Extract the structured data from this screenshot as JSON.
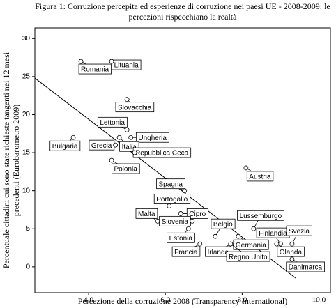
{
  "chart_data": {
    "type": "scatter",
    "title": [
      "Figura 1: Corruzione percepita ed esperienze di corruzione nei paesi UE - 2008-2009: le",
      "percezioni rispecchiano la realtà"
    ],
    "x_label": "Percezione della corruzione 2008 (Transparency International)",
    "y_label": [
      "Percentuale cittadini cui sono state richieste tangenti nei 12 mesi",
      "precedenti (Eurobarometro 2009)"
    ],
    "labels": [
      "Romania",
      "Lituania",
      "Slovacchia",
      "Lettonia",
      "Ungheria",
      "Bulgaria",
      "Grecia",
      "Italia",
      "Repubblica Ceca",
      "Polonia",
      "Austria",
      "Spagna",
      "Portogallo",
      "Malta",
      "Cipro",
      "Slovenia",
      "Estonia",
      "Francia",
      "Belgio",
      "Irlanda",
      "Germania",
      "Regno Unito",
      "Lussemburgo",
      "Finlandia",
      "Olanda",
      "Svezia",
      "Danimarca"
    ],
    "x": [
      3.8,
      4.6,
      5.0,
      5.0,
      5.1,
      3.6,
      4.7,
      4.8,
      5.2,
      4.6,
      8.1,
      6.5,
      6.1,
      5.8,
      6.4,
      6.7,
      6.6,
      6.9,
      7.3,
      7.7,
      7.9,
      7.7,
      8.3,
      9.0,
      8.9,
      9.3,
      9.3
    ],
    "values": [
      27,
      27,
      22,
      18,
      17,
      17,
      16,
      17,
      15,
      14,
      13,
      10,
      8,
      6,
      7,
      6,
      5,
      3,
      4,
      3,
      4,
      3,
      5,
      3,
      3,
      3,
      1
    ],
    "trend_line": {
      "x": [
        2.6,
        9.4
      ],
      "y": [
        24.8,
        -1.5
      ]
    },
    "xlim": [
      2.6,
      10.3
    ],
    "ylim": [
      -3.4,
      31.4
    ],
    "xticks": [
      {
        "value": 4,
        "label": "4,0"
      },
      {
        "value": 6,
        "label": "6,0"
      },
      {
        "value": 8,
        "label": "8,0"
      },
      {
        "value": 10,
        "label": "10,0"
      }
    ],
    "yticks": [
      0,
      5,
      10,
      15,
      20,
      25,
      30
    ]
  }
}
